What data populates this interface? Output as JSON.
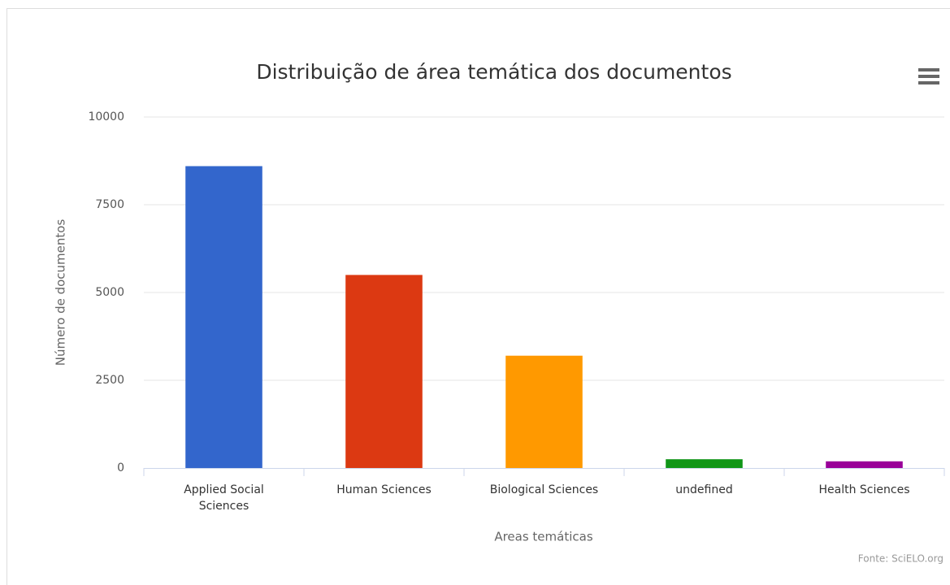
{
  "chart_data": {
    "type": "bar",
    "title": "Distribuição de área temática dos documentos",
    "categories": [
      "Applied Social Sciences",
      "Human Sciences",
      "Biological Sciences",
      "undefined",
      "Health Sciences"
    ],
    "values": [
      8600,
      5500,
      3200,
      250,
      190
    ],
    "colors": [
      "#3366cc",
      "#dc3912",
      "#ff9900",
      "#109618",
      "#990099"
    ],
    "ylim": [
      0,
      10000
    ],
    "yticks": [
      0,
      2500,
      5000,
      7500,
      10000
    ],
    "grid": true,
    "xlabel": "Areas temáticas",
    "ylabel": "Número de documentos",
    "credits": "Fonte: SciELO.org"
  }
}
